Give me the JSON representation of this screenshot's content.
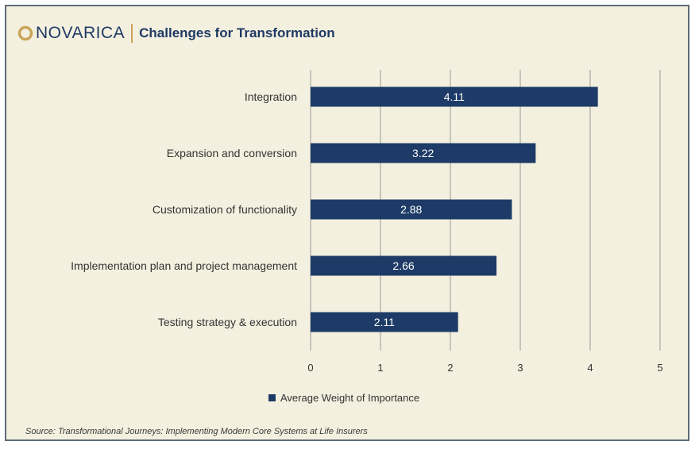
{
  "header": {
    "brand": "NOVARICA",
    "title": "Challenges for Transformation"
  },
  "colors": {
    "bar": "#1d3b66",
    "brand_text": "#1f3a64",
    "logo_accent": "#c9a35a",
    "background": "#f4f0df"
  },
  "chart_data": {
    "type": "bar",
    "orientation": "horizontal",
    "categories": [
      "Integration",
      "Expansion and conversion",
      "Customization of functionality",
      "Implementation plan and project management",
      "Testing strategy & execution"
    ],
    "series": [
      {
        "name": "Average Weight of Importance",
        "values": [
          4.11,
          3.22,
          2.88,
          2.66,
          2.11
        ]
      }
    ],
    "data_labels": [
      "4.11",
      "3.22",
      "2.88",
      "2.66",
      "2.11"
    ],
    "xticks": [
      "0",
      "1",
      "2",
      "3",
      "4",
      "5"
    ],
    "xlim": [
      0,
      5
    ],
    "grid": "vertical",
    "legend_position": "bottom"
  },
  "source": "Source: Transformational Journeys: Implementing Modern Core Systems at Life Insurers"
}
